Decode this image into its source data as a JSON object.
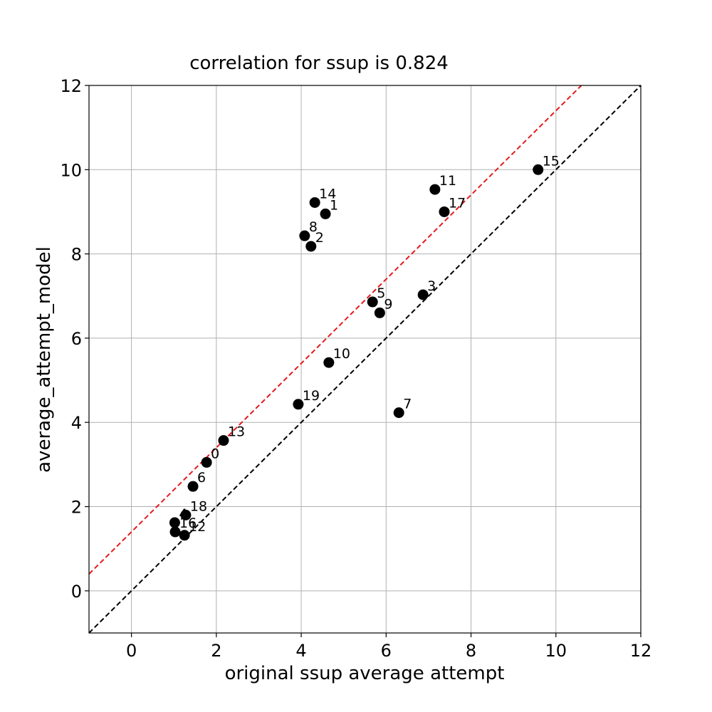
{
  "chart_data": {
    "type": "scatter",
    "title": "correlation for ssup is 0.824",
    "xlabel": "original ssup average attempt",
    "ylabel": "average_attempt_model",
    "xlim": [
      -1,
      12
    ],
    "ylim": [
      -1,
      12
    ],
    "xticks": [
      0,
      2,
      4,
      6,
      8,
      10,
      12
    ],
    "yticks": [
      0,
      2,
      4,
      6,
      8,
      10,
      12
    ],
    "grid": true,
    "points": [
      {
        "label": "0",
        "x": 1.77,
        "y": 3.05
      },
      {
        "label": "1",
        "x": 4.57,
        "y": 8.95
      },
      {
        "label": "2",
        "x": 4.23,
        "y": 8.18
      },
      {
        "label": "3",
        "x": 6.87,
        "y": 7.03
      },
      {
        "label": "4",
        "x": 1.02,
        "y": 1.62
      },
      {
        "label": "5",
        "x": 5.68,
        "y": 6.86
      },
      {
        "label": "6",
        "x": 1.45,
        "y": 2.48
      },
      {
        "label": "7",
        "x": 6.3,
        "y": 4.23
      },
      {
        "label": "8",
        "x": 4.08,
        "y": 8.43
      },
      {
        "label": "9",
        "x": 5.85,
        "y": 6.6
      },
      {
        "label": "10",
        "x": 4.65,
        "y": 5.42
      },
      {
        "label": "11",
        "x": 7.15,
        "y": 9.53
      },
      {
        "label": "12",
        "x": 1.25,
        "y": 1.32
      },
      {
        "label": "13",
        "x": 2.17,
        "y": 3.57
      },
      {
        "label": "14",
        "x": 4.32,
        "y": 9.22
      },
      {
        "label": "15",
        "x": 9.58,
        "y": 10.0
      },
      {
        "label": "16",
        "x": 1.03,
        "y": 1.4
      },
      {
        "label": "17",
        "x": 7.37,
        "y": 9.0
      },
      {
        "label": "18",
        "x": 1.28,
        "y": 1.8
      },
      {
        "label": "19",
        "x": 3.93,
        "y": 4.43
      }
    ],
    "point_color": "#000000",
    "reference_lines": [
      {
        "slope": 1.0,
        "intercept": 0.0,
        "color": "#000000",
        "style": "dashed"
      },
      {
        "slope": 1.0,
        "intercept": 1.4,
        "color": "#e41a1c",
        "style": "dashed"
      }
    ]
  }
}
